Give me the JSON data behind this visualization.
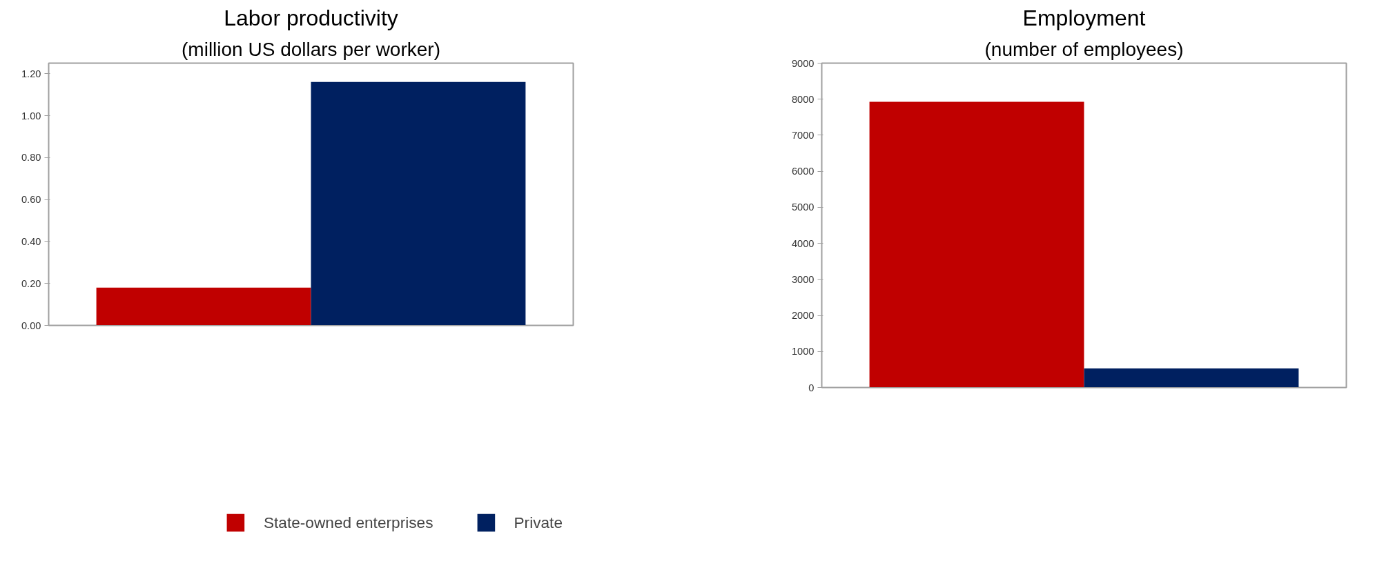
{
  "chart_data": [
    {
      "type": "bar",
      "title": "Labor productivity",
      "subtitle": "(million US dollars per worker)",
      "categories": [
        null
      ],
      "series": [
        {
          "name": "State-owned enterprises",
          "color": "#c00000",
          "values": [
            0.18
          ]
        },
        {
          "name": "Private",
          "color": "#002060",
          "values": [
            1.16
          ]
        }
      ],
      "ylim": [
        0,
        1.25
      ],
      "yticks": [
        {
          "value": 0,
          "label": "0.00"
        },
        {
          "value": 0.2,
          "label": "0.20"
        },
        {
          "value": 0.4,
          "label": "0.40"
        },
        {
          "value": 0.6,
          "label": "0.60"
        },
        {
          "value": 0.8,
          "label": "0.80"
        },
        {
          "value": 1.0,
          "label": "1.00"
        },
        {
          "value": 1.2,
          "label": "1.20"
        }
      ],
      "grid": false,
      "legend": "bottom",
      "tick_labels": "y"
    },
    {
      "type": "bar",
      "title": "Employment",
      "subtitle": "(number of employees)",
      "categories": [
        null
      ],
      "series": [
        {
          "color": "#c00000",
          "values": [
            7930
          ]
        },
        {
          "color": "#002060",
          "values": [
            530
          ]
        }
      ],
      "ylim": [
        0,
        9000
      ],
      "yticks": [
        0,
        1000,
        2000,
        3000,
        4000,
        5000,
        6000,
        7000,
        8000,
        9000
      ],
      "grid": false,
      "tick_labels": "y"
    }
  ]
}
